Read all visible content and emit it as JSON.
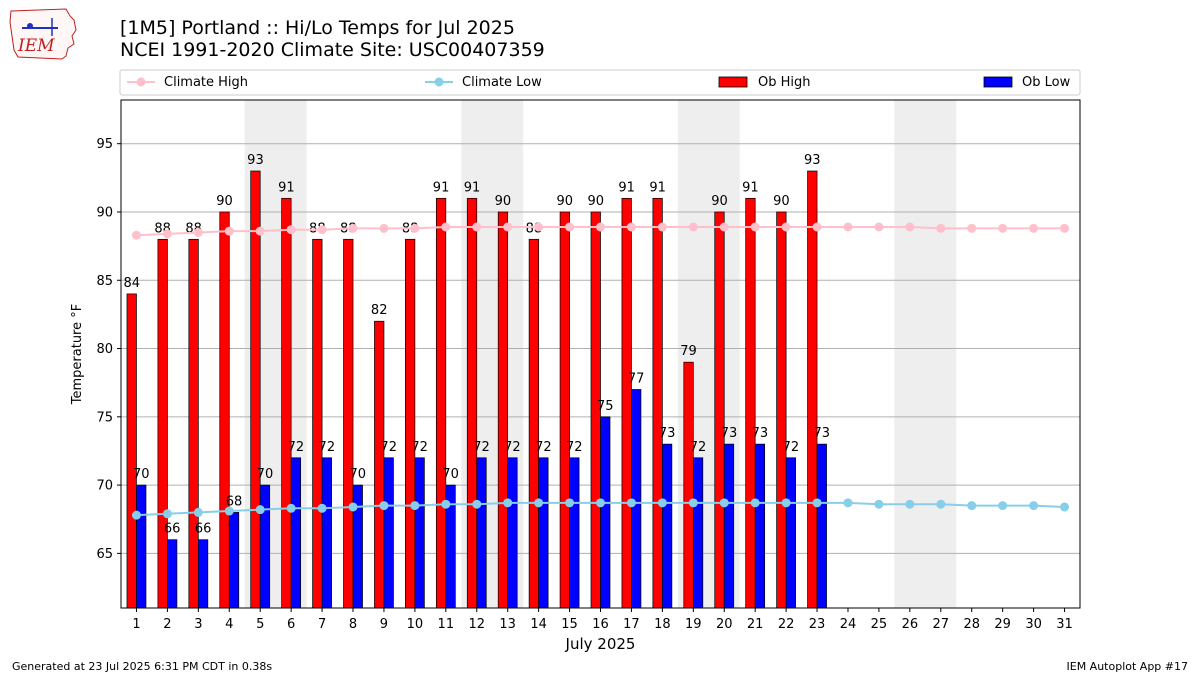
{
  "title_line1": "[1M5] Portland :: Hi/Lo Temps for Jul 2025",
  "title_line2": "NCEI 1991-2020 Climate Site: USC00407359",
  "logo_text": "IEM",
  "footer_left": "Generated at 23 Jul 2025 6:31 PM CDT in 0.38s",
  "footer_right": "IEM Autoplot App #17",
  "colors": {
    "ob_high": "#ff0000",
    "ob_low": "#0000ff",
    "climate_high": "#ffc0cb",
    "climate_low": "#87ceeb",
    "weekend_shade": "#eeeeee",
    "grid": "#b0b0b0"
  },
  "chart_data": {
    "type": "bar",
    "xlabel": "July 2025",
    "ylabel": "Temperature °F",
    "ylim": [
      61,
      98.2
    ],
    "yticks": [
      65,
      70,
      75,
      80,
      85,
      90,
      95
    ],
    "grid": "horizontal",
    "legend_position": "top",
    "categories": [
      "1",
      "2",
      "3",
      "4",
      "5",
      "6",
      "7",
      "8",
      "9",
      "10",
      "11",
      "12",
      "13",
      "14",
      "15",
      "16",
      "17",
      "18",
      "19",
      "20",
      "21",
      "22",
      "23",
      "24",
      "25",
      "26",
      "27",
      "28",
      "29",
      "30",
      "31"
    ],
    "weekend_shading": [
      [
        "5",
        "6"
      ],
      [
        "12",
        "13"
      ],
      [
        "19",
        "20"
      ],
      [
        "26",
        "27"
      ]
    ],
    "series": [
      {
        "name": "Ob High",
        "kind": "bar",
        "values": [
          84,
          88,
          88,
          90,
          93,
          91,
          88,
          88,
          82,
          88,
          91,
          91,
          90,
          88,
          90,
          90,
          91,
          91,
          79,
          90,
          91,
          90,
          93,
          null,
          null,
          null,
          null,
          null,
          null,
          null,
          null
        ]
      },
      {
        "name": "Ob Low",
        "kind": "bar",
        "values": [
          70,
          66,
          66,
          68,
          70,
          72,
          72,
          70,
          72,
          72,
          70,
          72,
          72,
          72,
          72,
          75,
          77,
          73,
          72,
          73,
          73,
          72,
          73,
          null,
          null,
          null,
          null,
          null,
          null,
          null,
          null
        ]
      },
      {
        "name": "Climate High",
        "kind": "line",
        "values": [
          88.3,
          88.4,
          88.5,
          88.6,
          88.6,
          88.7,
          88.7,
          88.8,
          88.8,
          88.8,
          88.9,
          88.9,
          88.9,
          88.9,
          88.9,
          88.9,
          88.9,
          88.9,
          88.9,
          88.9,
          88.9,
          88.9,
          88.9,
          88.9,
          88.9,
          88.9,
          88.8,
          88.8,
          88.8,
          88.8,
          88.8
        ]
      },
      {
        "name": "Climate Low",
        "kind": "line",
        "values": [
          67.8,
          67.9,
          68.0,
          68.1,
          68.2,
          68.3,
          68.3,
          68.4,
          68.5,
          68.5,
          68.6,
          68.6,
          68.7,
          68.7,
          68.7,
          68.7,
          68.7,
          68.7,
          68.7,
          68.7,
          68.7,
          68.7,
          68.7,
          68.7,
          68.6,
          68.6,
          68.6,
          68.5,
          68.5,
          68.5,
          68.4
        ]
      }
    ]
  }
}
